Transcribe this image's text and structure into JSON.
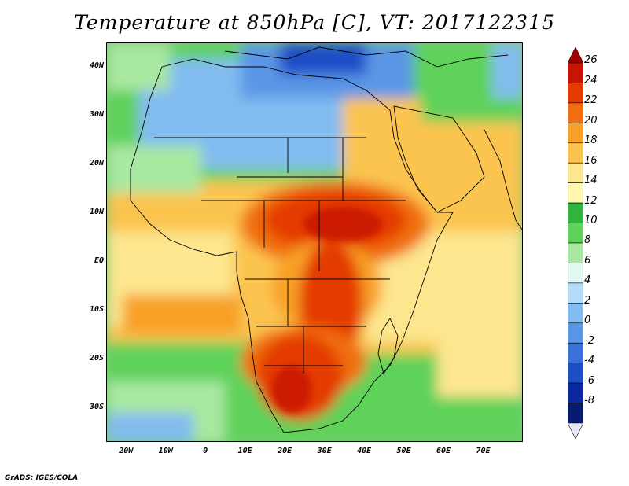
{
  "title": "Temperature at 850hPa [C], VT: 2017122315",
  "credit": "GrADS: IGES/COLA",
  "map": {
    "projection": "latlon",
    "lon_range": [
      -25,
      80
    ],
    "lat_range": [
      -37,
      45
    ],
    "lat_ticks": [
      {
        "value": 40,
        "label": "40N"
      },
      {
        "value": 30,
        "label": "30N"
      },
      {
        "value": 20,
        "label": "20N"
      },
      {
        "value": 10,
        "label": "10N"
      },
      {
        "value": 0,
        "label": "EQ"
      },
      {
        "value": -10,
        "label": "10S"
      },
      {
        "value": -20,
        "label": "20S"
      },
      {
        "value": -30,
        "label": "30S"
      }
    ],
    "lon_ticks": [
      {
        "value": -20,
        "label": "20W"
      },
      {
        "value": -10,
        "label": "10W"
      },
      {
        "value": 0,
        "label": "0"
      },
      {
        "value": 10,
        "label": "10E"
      },
      {
        "value": 20,
        "label": "20E"
      },
      {
        "value": 30,
        "label": "30E"
      },
      {
        "value": 40,
        "label": "40E"
      },
      {
        "value": 50,
        "label": "50E"
      },
      {
        "value": 60,
        "label": "60E"
      },
      {
        "value": 70,
        "label": "70E"
      }
    ]
  },
  "colorbar": {
    "levels": [
      {
        "label": "26",
        "color": "#c81400"
      },
      {
        "label": "24",
        "color": "#e43a00"
      },
      {
        "label": "22",
        "color": "#f06e10"
      },
      {
        "label": "20",
        "color": "#f8a028"
      },
      {
        "label": "18",
        "color": "#fbc450"
      },
      {
        "label": "16",
        "color": "#fde68e"
      },
      {
        "label": "14",
        "color": "#fff6b0"
      },
      {
        "label": "12",
        "color": "#2fb43c"
      },
      {
        "label": "10",
        "color": "#5fd25a"
      },
      {
        "label": "8",
        "color": "#a8e8a0"
      },
      {
        "label": "6",
        "color": "#e0f8f0"
      },
      {
        "label": "4",
        "color": "#b4dcf8"
      },
      {
        "label": "2",
        "color": "#82bcf0"
      },
      {
        "label": "0",
        "color": "#5a96e6"
      },
      {
        "label": "-2",
        "color": "#3a70da"
      },
      {
        "label": "-4",
        "color": "#1e4ec6"
      },
      {
        "label": "-6",
        "color": "#0c2aa0"
      },
      {
        "label": "-8",
        "color": "#061a70"
      }
    ],
    "under_color": "#e6e6fa",
    "over_color": "#a00000"
  }
}
